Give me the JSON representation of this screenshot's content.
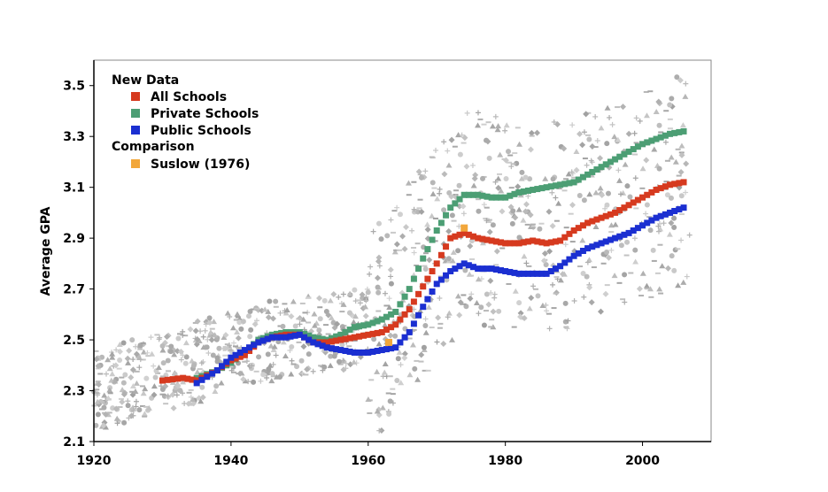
{
  "chart_data": {
    "type": "scatter",
    "title": "",
    "xlabel": "",
    "ylabel": "Average GPA",
    "xlim": [
      1920,
      2010
    ],
    "ylim": [
      2.1,
      3.6
    ],
    "grid": false,
    "xticks": [
      1920,
      1940,
      1960,
      1980,
      2000
    ],
    "xtick_labels": [
      "1920",
      "1940",
      "1960",
      "1980",
      "2000"
    ],
    "yticks": [
      2.1,
      2.3,
      2.5,
      2.7,
      2.9,
      3.1,
      3.3,
      3.5
    ],
    "ytick_labels": [
      "2.1",
      "2.3",
      "2.5",
      "2.7",
      "2.9",
      "3.1",
      "3.3",
      "3.5"
    ],
    "legend": {
      "position": "top-left",
      "groups": [
        {
          "title": "New Data",
          "entries": [
            {
              "label": "All Schools",
              "color": "#d63a1f"
            },
            {
              "label": "Private Schools",
              "color": "#4c9e74"
            },
            {
              "label": "Public Schools",
              "color": "#1b2fd1"
            }
          ]
        },
        {
          "title": "Comparison",
          "entries": [
            {
              "label": "Suslow (1976)",
              "color": "#f2a73b"
            }
          ]
        }
      ]
    },
    "series": [
      {
        "name": "All Schools",
        "color": "#d63a1f",
        "x": [
          1930,
          1933,
          1935,
          1938,
          1940,
          1942,
          1944,
          1946,
          1948,
          1950,
          1952,
          1954,
          1956,
          1958,
          1960,
          1962,
          1964,
          1966,
          1968,
          1970,
          1972,
          1974,
          1976,
          1978,
          1980,
          1982,
          1984,
          1986,
          1988,
          1990,
          1992,
          1994,
          1996,
          1998,
          2000,
          2002,
          2004,
          2006
        ],
        "y": [
          2.34,
          2.35,
          2.34,
          2.38,
          2.42,
          2.44,
          2.49,
          2.51,
          2.52,
          2.52,
          2.49,
          2.49,
          2.5,
          2.51,
          2.52,
          2.53,
          2.56,
          2.62,
          2.71,
          2.8,
          2.9,
          2.92,
          2.9,
          2.89,
          2.88,
          2.88,
          2.89,
          2.88,
          2.89,
          2.93,
          2.96,
          2.98,
          3.0,
          3.03,
          3.06,
          3.09,
          3.11,
          3.12
        ]
      },
      {
        "name": "Private Schools",
        "color": "#4c9e74",
        "x": [
          1935,
          1938,
          1940,
          1942,
          1944,
          1946,
          1948,
          1950,
          1952,
          1954,
          1956,
          1958,
          1960,
          1962,
          1964,
          1966,
          1968,
          1970,
          1972,
          1974,
          1976,
          1978,
          1980,
          1982,
          1984,
          1986,
          1988,
          1990,
          1992,
          1994,
          1996,
          1998,
          2000,
          2002,
          2004,
          2006
        ],
        "y": [
          2.35,
          2.38,
          2.41,
          2.45,
          2.5,
          2.52,
          2.53,
          2.53,
          2.51,
          2.5,
          2.52,
          2.55,
          2.56,
          2.58,
          2.61,
          2.7,
          2.82,
          2.93,
          3.02,
          3.07,
          3.07,
          3.06,
          3.06,
          3.08,
          3.09,
          3.1,
          3.11,
          3.12,
          3.15,
          3.18,
          3.21,
          3.24,
          3.27,
          3.29,
          3.31,
          3.32
        ]
      },
      {
        "name": "Public Schools",
        "color": "#1b2fd1",
        "x": [
          1935,
          1938,
          1940,
          1942,
          1944,
          1946,
          1948,
          1950,
          1952,
          1954,
          1956,
          1958,
          1960,
          1962,
          1964,
          1966,
          1968,
          1970,
          1972,
          1974,
          1976,
          1978,
          1980,
          1982,
          1984,
          1986,
          1988,
          1990,
          1992,
          1994,
          1996,
          1998,
          2000,
          2002,
          2004,
          2006
        ],
        "y": [
          2.33,
          2.38,
          2.43,
          2.46,
          2.49,
          2.51,
          2.51,
          2.52,
          2.49,
          2.47,
          2.46,
          2.45,
          2.45,
          2.46,
          2.47,
          2.53,
          2.63,
          2.72,
          2.77,
          2.8,
          2.78,
          2.78,
          2.77,
          2.76,
          2.76,
          2.76,
          2.79,
          2.83,
          2.86,
          2.88,
          2.9,
          2.92,
          2.95,
          2.98,
          3.0,
          3.02
        ]
      },
      {
        "name": "Suslow (1976)",
        "color": "#f2a73b",
        "x": [
          1963,
          1974
        ],
        "y": [
          2.49,
          2.94
        ]
      }
    ]
  }
}
